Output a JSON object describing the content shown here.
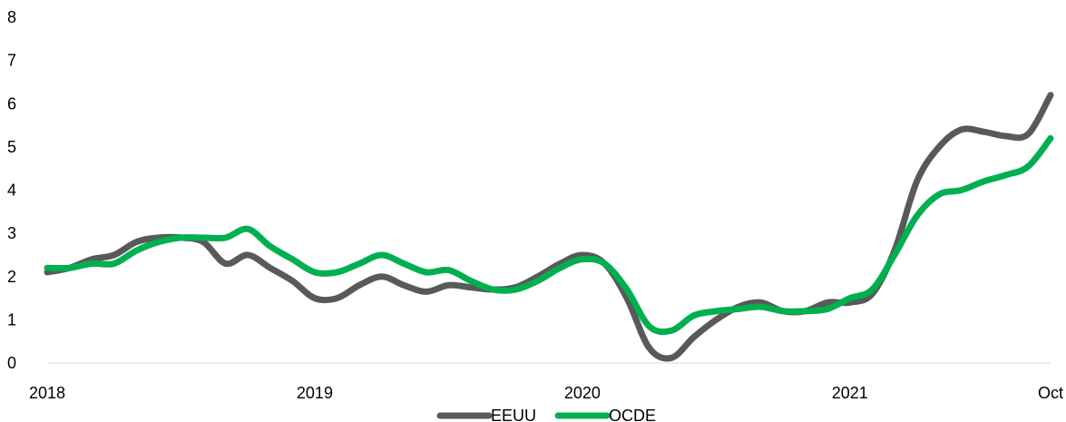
{
  "chart_data": {
    "type": "line",
    "title": "",
    "xlabel": "",
    "ylabel": "",
    "ylim": [
      0,
      8
    ],
    "yticks": [
      "0",
      "1",
      "2",
      "3",
      "4",
      "5",
      "6",
      "7",
      "8"
    ],
    "xticks": [
      {
        "label": "2018",
        "x": 0
      },
      {
        "label": "2019",
        "x": 12
      },
      {
        "label": "2020",
        "x": 24
      },
      {
        "label": "2021",
        "x": 36
      },
      {
        "label": "Oct",
        "x": 45
      }
    ],
    "grid": false,
    "legend": "bottom",
    "series": [
      {
        "name": "EEUU",
        "color": "#595959",
        "values": [
          2.1,
          2.2,
          2.4,
          2.5,
          2.8,
          2.9,
          2.9,
          2.8,
          2.3,
          2.5,
          2.2,
          1.9,
          1.5,
          1.5,
          1.8,
          2.0,
          1.8,
          1.65,
          1.8,
          1.75,
          1.7,
          1.75,
          2.0,
          2.3,
          2.5,
          2.3,
          1.5,
          0.35,
          0.12,
          0.6,
          1.0,
          1.3,
          1.4,
          1.2,
          1.2,
          1.4,
          1.4,
          1.6,
          2.6,
          4.2,
          5.0,
          5.4,
          5.35,
          5.25,
          5.3,
          6.2
        ]
      },
      {
        "name": "OCDE",
        "color": "#00b050",
        "values": [
          2.2,
          2.2,
          2.3,
          2.3,
          2.6,
          2.8,
          2.9,
          2.9,
          2.9,
          3.1,
          2.7,
          2.4,
          2.1,
          2.1,
          2.3,
          2.5,
          2.3,
          2.1,
          2.15,
          1.9,
          1.7,
          1.7,
          1.9,
          2.2,
          2.4,
          2.3,
          1.7,
          0.85,
          0.75,
          1.1,
          1.2,
          1.25,
          1.3,
          1.2,
          1.2,
          1.25,
          1.5,
          1.7,
          2.5,
          3.4,
          3.9,
          4.0,
          4.2,
          4.35,
          4.55,
          5.2
        ]
      }
    ]
  }
}
